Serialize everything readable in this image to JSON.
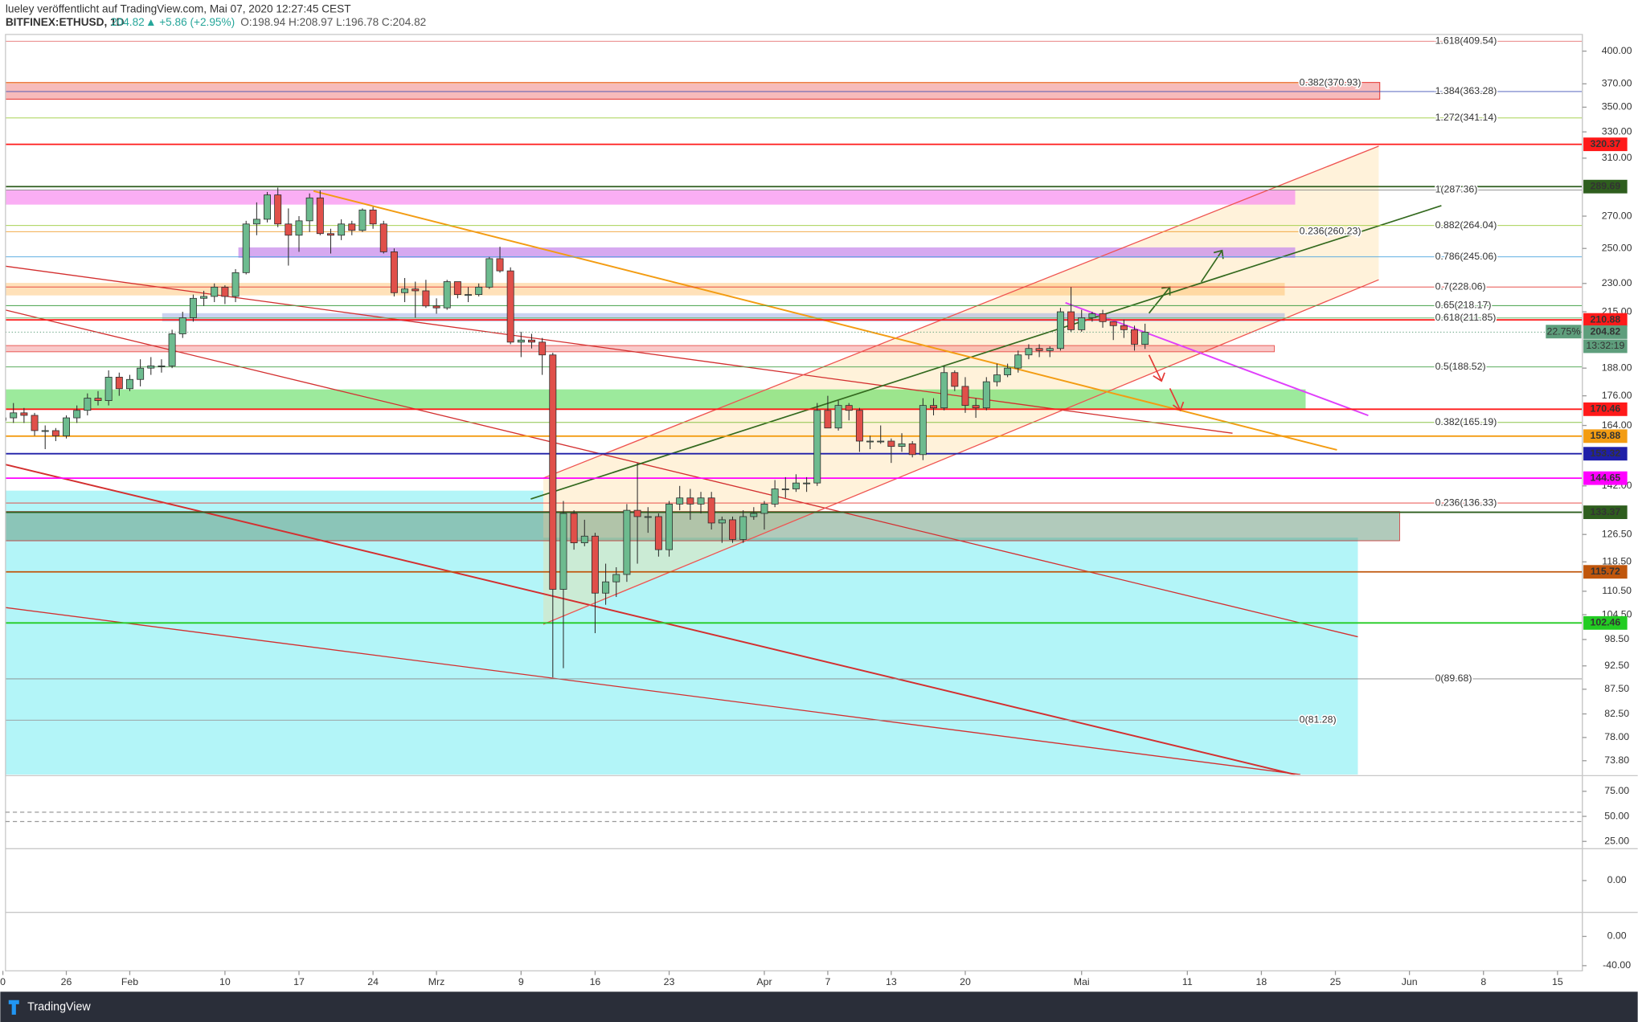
{
  "header": {
    "publisher": "lueley veröffentlicht auf TradingView.com, Mai 07, 2020 12:27:45 CEST",
    "symbol": "BITFINEX:ETHUSD, 1D",
    "price": "204.82",
    "change": "▲ +5.86 (+2.95%)",
    "ohlc": "O:198.94 H:208.97 L:196.78 C:204.82"
  },
  "footer": {
    "brand": "TradingView"
  },
  "chart_data": {
    "type": "candlestick",
    "log_scale": true,
    "up_color": "#6dbb8f",
    "down_color": "#e0504a",
    "xlim": [
      0.25,
      149.35
    ],
    "ylim": [
      71.4,
      416.2
    ],
    "xticks": [
      {
        "value": 0,
        "label": "0"
      },
      {
        "value": 6,
        "label": "26"
      },
      {
        "value": 12,
        "label": "Feb"
      },
      {
        "value": 21,
        "label": "10"
      },
      {
        "value": 28,
        "label": "17"
      },
      {
        "value": 35,
        "label": "24"
      },
      {
        "value": 41,
        "label": "Mrz"
      },
      {
        "value": 49,
        "label": "9"
      },
      {
        "value": 56,
        "label": "16"
      },
      {
        "value": 63,
        "label": "23"
      },
      {
        "value": 72,
        "label": "Apr"
      },
      {
        "value": 78,
        "label": "7"
      },
      {
        "value": 84,
        "label": "13"
      },
      {
        "value": 91,
        "label": "20"
      },
      {
        "value": 102,
        "label": "Mai"
      },
      {
        "value": 112,
        "label": "11"
      },
      {
        "value": 119,
        "label": "18"
      },
      {
        "value": 126,
        "label": "25"
      },
      {
        "value": 133,
        "label": "Jun"
      },
      {
        "value": 140,
        "label": "8"
      },
      {
        "value": 147,
        "label": "15"
      }
    ],
    "yticks": [
      {
        "value": 400,
        "label": "400.00"
      },
      {
        "value": 370,
        "label": "370.00"
      },
      {
        "value": 350,
        "label": "350.00"
      },
      {
        "value": 330,
        "label": "330.00"
      },
      {
        "value": 310,
        "label": "310.00"
      },
      {
        "value": 270,
        "label": "270.00"
      },
      {
        "value": 250,
        "label": "250.00"
      },
      {
        "value": 230,
        "label": "230.00"
      },
      {
        "value": 215,
        "label": "215.00"
      },
      {
        "value": 188,
        "label": "188.00"
      },
      {
        "value": 176,
        "label": "176.00"
      },
      {
        "value": 164,
        "label": "164.00"
      },
      {
        "value": 142,
        "label": "142.00"
      },
      {
        "value": 126.5,
        "label": "126.50"
      },
      {
        "value": 118.5,
        "label": "118.50"
      },
      {
        "value": 110.5,
        "label": "110.50"
      },
      {
        "value": 104.5,
        "label": "104.50"
      },
      {
        "value": 98.5,
        "label": "98.50"
      },
      {
        "value": 92.5,
        "label": "92.50"
      },
      {
        "value": 87.5,
        "label": "87.50"
      },
      {
        "value": 82.5,
        "label": "82.50"
      },
      {
        "value": 78,
        "label": "78.00"
      },
      {
        "value": 73.8,
        "label": "73.80"
      }
    ],
    "open": [
      166,
      167,
      169,
      168,
      162,
      162,
      160,
      167,
      170,
      175,
      174,
      184,
      179,
      183,
      188,
      189,
      189,
      204,
      212,
      222,
      223,
      228,
      223,
      236,
      265,
      268,
      284,
      265,
      258,
      267,
      282,
      259,
      258,
      265,
      261,
      274,
      265,
      248,
      225,
      227,
      226,
      218,
      217,
      231,
      224,
      224,
      228,
      244,
      237,
      200,
      201,
      200,
      194,
      111,
      133,
      124,
      126,
      110,
      113,
      115,
      134,
      132,
      132,
      122,
      136,
      138,
      136,
      138,
      130,
      131,
      125,
      132,
      133,
      136,
      141,
      141,
      143,
      143,
      170,
      163,
      172,
      170,
      158,
      158,
      158,
      156,
      157,
      153,
      172,
      171,
      186,
      180,
      172,
      171,
      182,
      185,
      188,
      194,
      197,
      196,
      197,
      215,
      206,
      212,
      214,
      210,
      208,
      206,
      198.94
    ],
    "high": [
      171,
      173,
      171,
      169,
      164,
      163,
      168,
      172,
      177,
      178,
      187,
      186,
      185,
      192,
      193,
      192,
      206,
      215,
      224,
      226,
      230,
      229,
      238,
      267,
      279,
      286,
      289,
      275,
      270,
      285,
      287,
      262,
      268,
      267,
      275,
      276,
      267,
      250,
      233,
      231,
      232,
      222,
      232,
      231,
      228,
      230,
      245,
      251,
      239,
      205,
      204,
      202,
      195,
      137,
      134,
      131,
      127,
      118,
      117,
      136,
      150,
      135,
      133,
      137,
      142,
      141,
      140,
      140,
      132,
      132,
      134,
      135,
      137,
      144,
      145,
      146,
      145,
      173,
      176,
      174,
      173,
      171,
      160,
      164,
      159,
      161,
      158,
      175,
      175,
      189,
      187,
      184,
      175,
      184,
      190,
      190,
      196,
      199,
      199,
      198,
      217,
      228,
      216,
      215,
      216,
      210,
      211,
      208,
      208.97
    ],
    "low": [
      163,
      165,
      165,
      160,
      155,
      158,
      159,
      165,
      168,
      172,
      172,
      176,
      178,
      180,
      185,
      186,
      188,
      202,
      210,
      218,
      220,
      219,
      220,
      235,
      258,
      266,
      263,
      240,
      248,
      260,
      258,
      247,
      255,
      258,
      260,
      262,
      247,
      223,
      220,
      212,
      217,
      214,
      216,
      222,
      220,
      223,
      227,
      236,
      199,
      193,
      197,
      185,
      90,
      92,
      122,
      123,
      100,
      107,
      109,
      113,
      118,
      127,
      120,
      120,
      134,
      131,
      133,
      128,
      124,
      124,
      124,
      131,
      128,
      135,
      138,
      140,
      140,
      142,
      163,
      162,
      166,
      154,
      155,
      157,
      150,
      154,
      152,
      151,
      168,
      170,
      178,
      169,
      167,
      170,
      180,
      184,
      186,
      192,
      193,
      193,
      196,
      205,
      205,
      210,
      207,
      201,
      202,
      196,
      196.78
    ],
    "close": [
      167,
      169,
      168,
      162,
      162,
      160,
      167,
      170,
      175,
      174,
      184,
      179,
      183,
      188,
      189,
      189,
      204,
      212,
      222,
      223,
      228,
      223,
      236,
      265,
      268,
      284,
      265,
      258,
      267,
      282,
      259,
      258,
      265,
      261,
      274,
      265,
      248,
      225,
      227,
      226,
      218,
      217,
      231,
      224,
      224,
      228,
      244,
      237,
      200,
      201,
      200,
      194,
      111,
      133,
      124,
      126,
      110,
      113,
      115,
      134,
      132,
      132,
      122,
      136,
      138,
      136,
      138,
      130,
      131,
      125,
      132,
      133,
      136,
      141,
      141,
      143,
      143,
      170,
      163,
      172,
      170,
      158,
      158,
      158,
      156,
      157,
      153,
      172,
      171,
      186,
      180,
      172,
      171,
      182,
      185,
      188,
      194,
      197,
      196,
      197,
      215,
      206,
      212,
      214,
      210,
      208,
      206,
      199,
      204.82
    ],
    "levels": [
      {
        "value": 320.37,
        "color": "#ff1a1a"
      },
      {
        "value": 289.69,
        "color": "#2e5e1e"
      },
      {
        "value": 210.88,
        "color": "#ff1a1a"
      },
      {
        "value": 204.82,
        "color": "#5e9e7c",
        "style": "dotted"
      },
      {
        "value": 170.46,
        "color": "#ff1a1a"
      },
      {
        "value": 159.88,
        "color": "#f39c12"
      },
      {
        "value": 153.32,
        "color": "#1f1fa8"
      },
      {
        "value": 144.65,
        "color": "#ff00ff"
      },
      {
        "value": 133.37,
        "color": "#2e5e1e"
      },
      {
        "value": 115.72,
        "color": "#c0560c"
      },
      {
        "value": 102.46,
        "color": "#22cc22"
      }
    ],
    "fib_labels": [
      {
        "value": 409.54,
        "label": "1.618(409.54)",
        "color": "#e57373"
      },
      {
        "value": 363.28,
        "label": "1.384(363.28)",
        "color": "#3f51b5"
      },
      {
        "value": 341.14,
        "label": "1.272(341.14)",
        "color": "#9ccc3c"
      },
      {
        "value": 287.36,
        "label": "1(287.36)",
        "color": "#888888"
      },
      {
        "value": 264.04,
        "label": "0.882(264.04)",
        "color": "#9ccc3c"
      },
      {
        "value": 245.06,
        "label": "0.786(245.06)",
        "color": "#4aa3df"
      },
      {
        "value": 228.06,
        "label": "0.7(228.06)",
        "color": "#e53935"
      },
      {
        "value": 218.17,
        "label": "0.65(218.17)",
        "color": "#43a047"
      },
      {
        "value": 211.85,
        "label": "0.618(211.85)",
        "color": "#66bb6a"
      },
      {
        "value": 188.52,
        "label": "0.5(188.52)",
        "color": "#43a047"
      },
      {
        "value": 165.19,
        "label": "0.382(165.19)",
        "color": "#8bc34a"
      },
      {
        "value": 136.33,
        "label": "0.236(136.33)",
        "color": "#e53935"
      },
      {
        "value": 89.68,
        "label": "0(89.68)",
        "color": "#888888"
      }
    ],
    "fib_labels_inner": [
      {
        "value": 370.93,
        "label": "0.382(370.93)",
        "color": "#f0a030"
      },
      {
        "value": 260.23,
        "label": "0.236(260.23)",
        "color": "#f0a030"
      },
      {
        "value": 81.28,
        "label": "0(81.28)",
        "color": "#999999"
      }
    ],
    "badges": {
      "change_percent": "22.75%",
      "countdown": "13:32:19"
    },
    "panes": [
      {
        "ylim": [
          18.75,
          89.6
        ],
        "yticks": [
          {
            "value": 75,
            "label": "75.00"
          },
          {
            "value": 50,
            "label": "50.00"
          },
          {
            "value": 25,
            "label": "25.00"
          }
        ]
      },
      {
        "ylim": [
          -3,
          3
        ],
        "yticks": [
          {
            "value": 0,
            "label": "0.00"
          }
        ]
      },
      {
        "ylim": [
          -47.1,
          31.4
        ],
        "yticks": [
          {
            "value": 0,
            "label": "0.00"
          },
          {
            "value": -40,
            "label": "-40.00"
          }
        ]
      }
    ]
  }
}
